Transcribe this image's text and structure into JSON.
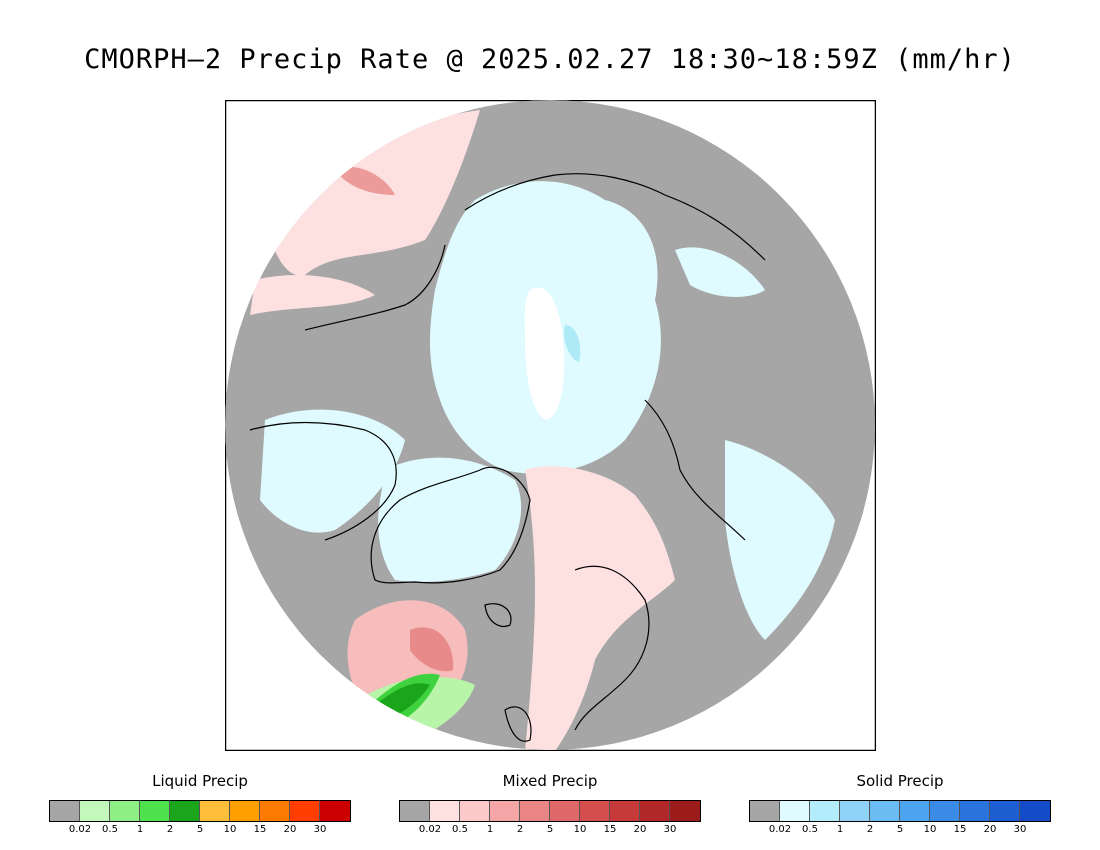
{
  "title": "CMORPH–2 Precip Rate @ 2025.02.27 18:30~18:59Z (mm/hr)",
  "map": {
    "projection": "north-polar-stereographic",
    "colors": {
      "no_precip": "#a6a6a6",
      "mixed_light": "#fde1e1",
      "mixed_med": "#f7bcbc",
      "mixed_heavy": "#e88a8a",
      "solid_light": "#e0fbff",
      "solid_med": "#aeeaf6",
      "liquid_light": "#b8f5a8",
      "liquid_med": "#3fd23f",
      "liquid_heavy": "#1aa51a",
      "coast": "#000000"
    }
  },
  "legends": [
    {
      "title": "Liquid Precip",
      "colors": [
        "#a6a6a6",
        "#c4f7bb",
        "#8eef85",
        "#4ee14e",
        "#1aa51a",
        "#ffbf3a",
        "#ff9f00",
        "#ff7a00",
        "#ff3d00",
        "#cc0000"
      ],
      "ticks": [
        "0.02",
        "0.5",
        "1",
        "2",
        "5",
        "10",
        "15",
        "20",
        "30"
      ]
    },
    {
      "title": "Mixed Precip",
      "colors": [
        "#a6a6a6",
        "#fde1e1",
        "#fbc9c9",
        "#f4a6a6",
        "#ea8585",
        "#df6868",
        "#d44e4e",
        "#c63a3a",
        "#b22828",
        "#9c1c1c"
      ],
      "ticks": [
        "0.02",
        "0.5",
        "1",
        "2",
        "5",
        "10",
        "15",
        "20",
        "30"
      ]
    },
    {
      "title": "Solid Precip",
      "colors": [
        "#a6a6a6",
        "#e0fbff",
        "#b3ecfb",
        "#8fd4f8",
        "#6cbcf4",
        "#4ea3ee",
        "#3a8be6",
        "#2a73dd",
        "#1d5fd3",
        "#134cc6"
      ],
      "ticks": [
        "0.02",
        "0.5",
        "1",
        "2",
        "5",
        "10",
        "15",
        "20",
        "30"
      ]
    }
  ]
}
